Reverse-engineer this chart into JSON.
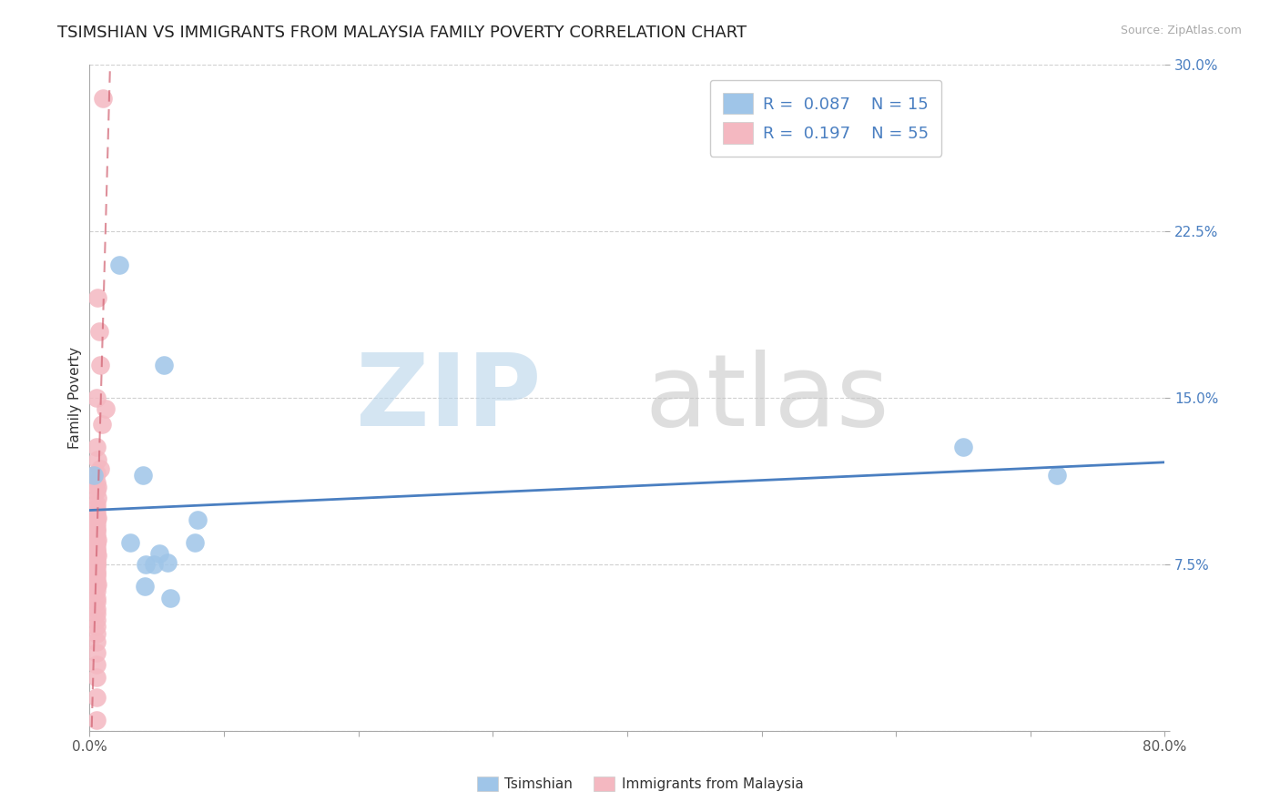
{
  "title": "TSIMSHIAN VS IMMIGRANTS FROM MALAYSIA FAMILY POVERTY CORRELATION CHART",
  "source_text": "Source: ZipAtlas.com",
  "ylabel": "Family Poverty",
  "xlim": [
    0.0,
    0.8
  ],
  "ylim": [
    0.0,
    0.3
  ],
  "xticks": [
    0.0,
    0.1,
    0.2,
    0.3,
    0.4,
    0.5,
    0.6,
    0.7,
    0.8
  ],
  "yticks": [
    0.0,
    0.075,
    0.15,
    0.225,
    0.3
  ],
  "background_color": "#ffffff",
  "grid_color": "#d0d0d0",
  "legend_R1": "0.087",
  "legend_N1": "15",
  "legend_R2": "0.197",
  "legend_N2": "55",
  "color_tsimshian": "#9fc5e8",
  "color_malaysia": "#f4b8c1",
  "color_tsimshian_line": "#4a7fc1",
  "color_malaysia_line": "#d06070",
  "tsimshian_x": [
    0.003,
    0.022,
    0.04,
    0.055,
    0.08,
    0.65,
    0.72,
    0.078,
    0.03,
    0.042,
    0.058,
    0.041,
    0.048,
    0.052,
    0.06
  ],
  "tsimshian_y": [
    0.115,
    0.21,
    0.115,
    0.165,
    0.095,
    0.128,
    0.115,
    0.085,
    0.085,
    0.075,
    0.076,
    0.065,
    0.075,
    0.08,
    0.06
  ],
  "malaysia_x": [
    0.01,
    0.006,
    0.007,
    0.008,
    0.005,
    0.012,
    0.009,
    0.005,
    0.006,
    0.008,
    0.005,
    0.005,
    0.006,
    0.005,
    0.006,
    0.005,
    0.005,
    0.005,
    0.006,
    0.005,
    0.005,
    0.005,
    0.005,
    0.005,
    0.006,
    0.005,
    0.005,
    0.005,
    0.005,
    0.005,
    0.006,
    0.005,
    0.005,
    0.005,
    0.005,
    0.005,
    0.005,
    0.005,
    0.005,
    0.006,
    0.005,
    0.005,
    0.005,
    0.005,
    0.005,
    0.005,
    0.005,
    0.005,
    0.005,
    0.005,
    0.005,
    0.005,
    0.005,
    0.005,
    0.005
  ],
  "malaysia_y": [
    0.285,
    0.195,
    0.18,
    0.165,
    0.15,
    0.145,
    0.138,
    0.128,
    0.122,
    0.118,
    0.116,
    0.112,
    0.11,
    0.108,
    0.105,
    0.102,
    0.1,
    0.098,
    0.096,
    0.095,
    0.093,
    0.091,
    0.09,
    0.088,
    0.086,
    0.085,
    0.084,
    0.082,
    0.081,
    0.08,
    0.079,
    0.077,
    0.076,
    0.075,
    0.074,
    0.072,
    0.071,
    0.07,
    0.068,
    0.066,
    0.065,
    0.063,
    0.06,
    0.058,
    0.055,
    0.053,
    0.05,
    0.047,
    0.044,
    0.04,
    0.035,
    0.03,
    0.024,
    0.015,
    0.005
  ],
  "watermark_zip": "ZIP",
  "watermark_atlas": "atlas",
  "title_fontsize": 13,
  "label_fontsize": 11,
  "tick_fontsize": 11,
  "legend_fontsize": 13
}
